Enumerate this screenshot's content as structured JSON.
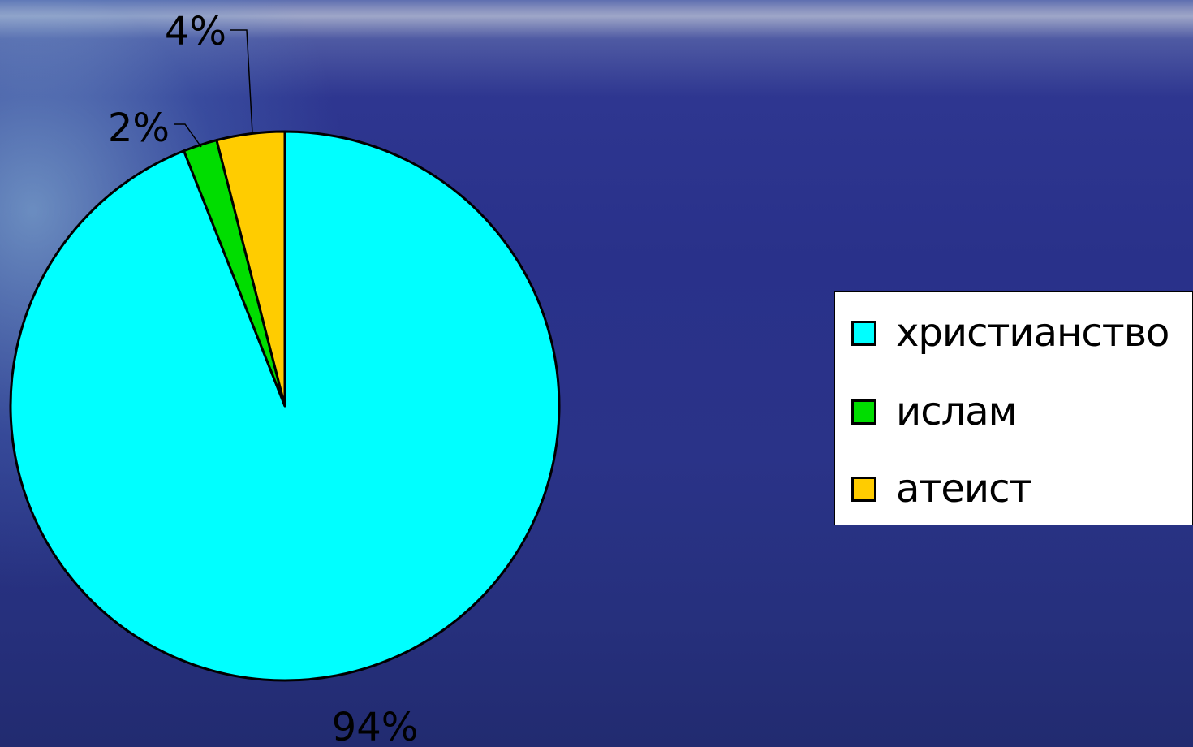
{
  "chart_data": {
    "type": "pie",
    "categories": [
      "христианство",
      "ислам",
      "атеист"
    ],
    "values": [
      94,
      2,
      4
    ],
    "value_labels": [
      "94%",
      "2%",
      "4%"
    ],
    "colors": [
      "#00ffff",
      "#00dd00",
      "#ffcc00"
    ],
    "start_angle_deg": 0,
    "direction": "clockwise",
    "legend_position": "right",
    "title": ""
  },
  "legend": {
    "items": [
      {
        "label": "христианство",
        "color": "#00ffff"
      },
      {
        "label": "ислам",
        "color": "#00dd00"
      },
      {
        "label": "атеист",
        "color": "#ffcc00"
      }
    ]
  }
}
